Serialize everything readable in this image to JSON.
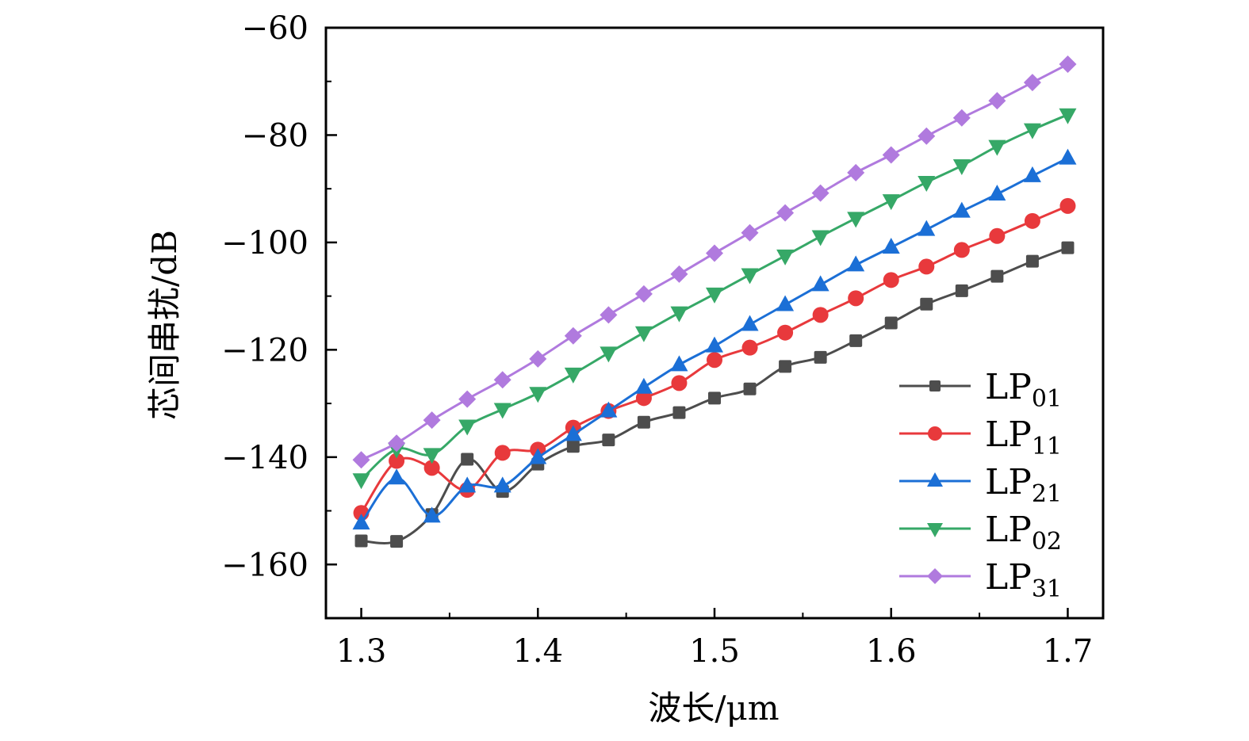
{
  "chart_data": {
    "type": "line",
    "title": "",
    "xlabel": "波长/μm",
    "ylabel": "芯间串扰/dB",
    "xlim": [
      1.28,
      1.72
    ],
    "ylim": [
      -170,
      -60
    ],
    "xticks": [
      1.3,
      1.4,
      1.5,
      1.6,
      1.7
    ],
    "xtick_labels": [
      "1.3",
      "1.4",
      "1.5",
      "1.6",
      "1.7"
    ],
    "xminor": [
      1.35,
      1.45,
      1.55,
      1.65
    ],
    "yticks": [
      -60,
      -80,
      -100,
      -120,
      -140,
      -160
    ],
    "ytick_labels": [
      "−60",
      "−80",
      "−100",
      "−120",
      "−140",
      "−160"
    ],
    "yminor": [
      -70,
      -90,
      -110,
      -130,
      -150
    ],
    "grid": false,
    "legend_position": "bottom-right",
    "x": [
      1.3,
      1.32,
      1.34,
      1.36,
      1.38,
      1.4,
      1.42,
      1.44,
      1.46,
      1.48,
      1.5,
      1.52,
      1.54,
      1.56,
      1.58,
      1.6,
      1.62,
      1.64,
      1.66,
      1.68,
      1.7
    ],
    "series": [
      {
        "name": "LP01",
        "label_main": "LP",
        "label_sub": "01",
        "color": "#4d4d4d",
        "marker": "square",
        "values": [
          -155.6,
          -155.7,
          -150.7,
          -140.4,
          -146.4,
          -141.3,
          -138.0,
          -136.8,
          -133.5,
          -131.7,
          -129.0,
          -127.3,
          -123.1,
          -121.4,
          -118.3,
          -115.0,
          -111.5,
          -109.0,
          -106.3,
          -103.5,
          -101.0
        ]
      },
      {
        "name": "LP11",
        "label_main": "LP",
        "label_sub": "11",
        "color": "#e8393c",
        "marker": "circle",
        "values": [
          -150.4,
          -140.7,
          -142.0,
          -146.1,
          -139.2,
          -138.6,
          -134.5,
          -131.4,
          -129.0,
          -126.2,
          -121.9,
          -119.6,
          -116.8,
          -113.5,
          -110.4,
          -107.0,
          -104.5,
          -101.4,
          -98.8,
          -96.0,
          -93.2
        ]
      },
      {
        "name": "LP21",
        "label_main": "LP",
        "label_sub": "21",
        "color": "#1b6fd6",
        "marker": "triangle-up",
        "values": [
          -152.3,
          -143.9,
          -151.0,
          -145.4,
          -145.4,
          -140.1,
          -135.8,
          -131.4,
          -127.0,
          -122.8,
          -119.3,
          -115.3,
          -111.6,
          -107.9,
          -104.2,
          -100.9,
          -97.6,
          -94.2,
          -91.0,
          -87.6,
          -84.3
        ]
      },
      {
        "name": "LP02",
        "label_main": "LP",
        "label_sub": "02",
        "color": "#36a867",
        "marker": "triangle-down",
        "values": [
          -144.2,
          -138.5,
          -139.5,
          -134.2,
          -131.1,
          -128.1,
          -124.5,
          -120.6,
          -116.8,
          -113.1,
          -109.6,
          -106.0,
          -102.5,
          -98.9,
          -95.5,
          -92.2,
          -88.8,
          -85.7,
          -82.1,
          -79.0,
          -76.2
        ]
      },
      {
        "name": "LP31",
        "label_main": "LP",
        "label_sub": "31",
        "color": "#b07ade",
        "marker": "diamond",
        "values": [
          -140.5,
          -137.4,
          -133.1,
          -129.2,
          -125.6,
          -121.7,
          -117.4,
          -113.5,
          -109.6,
          -105.9,
          -102.0,
          -98.2,
          -94.5,
          -90.8,
          -87.0,
          -83.7,
          -80.2,
          -76.8,
          -73.6,
          -70.2,
          -66.8
        ]
      }
    ]
  }
}
